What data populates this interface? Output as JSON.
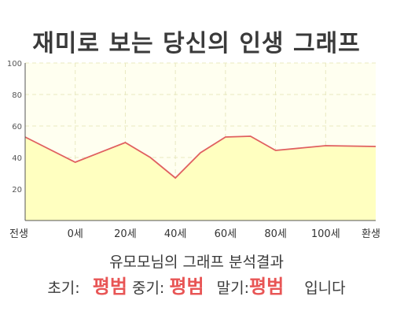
{
  "chart_data": {
    "type": "area",
    "title": "재미로 보는 당신의 인생 그래프",
    "x": [
      "전생",
      "0세",
      "20세",
      "40세",
      "60세",
      "80세",
      "100세",
      "환생"
    ],
    "x_ticks": [
      "전생",
      "0세",
      "20세",
      "40세",
      "60세",
      "80세",
      "100세",
      "환생"
    ],
    "y_ticks": [
      "20",
      "40",
      "60",
      "80",
      "100"
    ],
    "ylim": [
      0,
      100
    ],
    "series": [
      {
        "points": [
          [
            0,
            53
          ],
          [
            1,
            37
          ],
          [
            2,
            49.5
          ],
          [
            2.5,
            40
          ],
          [
            3,
            27
          ],
          [
            3.5,
            43
          ],
          [
            4,
            53
          ],
          [
            4.5,
            53.5
          ],
          [
            5,
            44.5
          ],
          [
            6,
            47.5
          ],
          [
            7,
            47
          ]
        ]
      }
    ],
    "grid": true,
    "colors": {
      "line": "#e06060",
      "fill": "#ffffc0",
      "plot_bg": "#fffff0",
      "grid": "#e8e8c0"
    }
  },
  "summary": {
    "line": "유모모님의 그래프 분석결과",
    "early_label": "초기:",
    "early_value": "평범",
    "mid_label": "중기:",
    "mid_value": "평범",
    "late_label": "말기:",
    "late_value": "평범",
    "ending": "입니다"
  }
}
